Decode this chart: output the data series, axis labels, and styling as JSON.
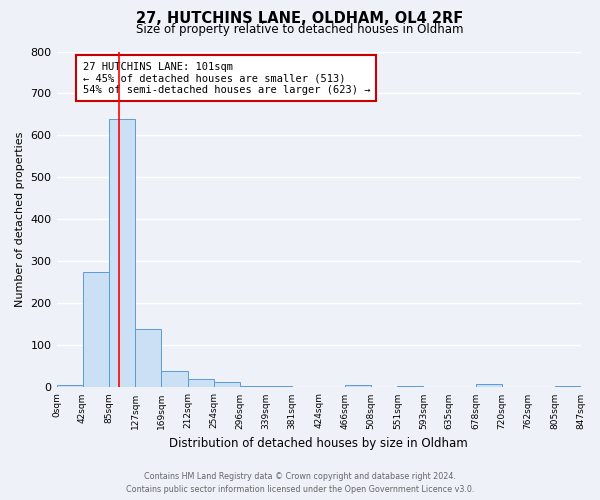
{
  "title": "27, HUTCHINS LANE, OLDHAM, OL4 2RF",
  "subtitle": "Size of property relative to detached houses in Oldham",
  "xlabel": "Distribution of detached houses by size in Oldham",
  "ylabel": "Number of detached properties",
  "bin_edges": [
    0,
    42,
    85,
    127,
    169,
    212,
    254,
    296,
    339,
    381,
    424,
    466,
    508,
    551,
    593,
    635,
    678,
    720,
    762,
    805,
    847
  ],
  "bin_labels": [
    "0sqm",
    "42sqm",
    "85sqm",
    "127sqm",
    "169sqm",
    "212sqm",
    "254sqm",
    "296sqm",
    "339sqm",
    "381sqm",
    "424sqm",
    "466sqm",
    "508sqm",
    "551sqm",
    "593sqm",
    "635sqm",
    "678sqm",
    "720sqm",
    "762sqm",
    "805sqm",
    "847sqm"
  ],
  "bar_heights": [
    5,
    275,
    640,
    140,
    38,
    20,
    12,
    4,
    4,
    0,
    0,
    5,
    0,
    4,
    0,
    0,
    7,
    0,
    0,
    4
  ],
  "bar_color": "#cce0f5",
  "bar_edge_color": "#5b9bd5",
  "red_line_x": 101,
  "annotation_title": "27 HUTCHINS LANE: 101sqm",
  "annotation_line1": "← 45% of detached houses are smaller (513)",
  "annotation_line2": "54% of semi-detached houses are larger (623) →",
  "annotation_box_color": "#ffffff",
  "annotation_box_edge": "#cc0000",
  "ylim": [
    0,
    800
  ],
  "yticks": [
    0,
    100,
    200,
    300,
    400,
    500,
    600,
    700,
    800
  ],
  "background_color": "#eef2f8",
  "grid_color": "#ffffff",
  "footer_line1": "Contains HM Land Registry data © Crown copyright and database right 2024.",
  "footer_line2": "Contains public sector information licensed under the Open Government Licence v3.0."
}
